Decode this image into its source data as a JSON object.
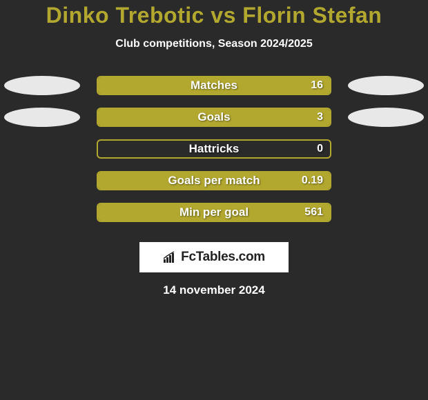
{
  "title": {
    "player1": "Dinko Trebotic",
    "vs": "vs",
    "player2": "Florin Stefan",
    "color": "#b3a82f"
  },
  "subtitle": "Club competitions, Season 2024/2025",
  "colors": {
    "background": "#2a2a2a",
    "bar_fill": "#b3a82f",
    "bar_border": "#b3a82f",
    "bar_bg": "#2a2a2a",
    "ellipse": "#e8e8e8",
    "text": "#ffffff"
  },
  "bar": {
    "track_width": 340,
    "track_height": 28,
    "border_radius": 6,
    "border_width": 2,
    "label_fontsize": 17
  },
  "ellipse": {
    "width": 110,
    "height": 28
  },
  "stats": [
    {
      "label": "Matches",
      "value_text": "16",
      "fill_pct": 100,
      "show_left_ellipse": true,
      "show_right_ellipse": true
    },
    {
      "label": "Goals",
      "value_text": "3",
      "fill_pct": 100,
      "show_left_ellipse": true,
      "show_right_ellipse": true
    },
    {
      "label": "Hattricks",
      "value_text": "0",
      "fill_pct": 0,
      "show_left_ellipse": false,
      "show_right_ellipse": false
    },
    {
      "label": "Goals per match",
      "value_text": "0.19",
      "fill_pct": 100,
      "show_left_ellipse": false,
      "show_right_ellipse": false
    },
    {
      "label": "Min per goal",
      "value_text": "561",
      "fill_pct": 100,
      "show_left_ellipse": false,
      "show_right_ellipse": false
    }
  ],
  "brand": "FcTables.com",
  "date": "14 november 2024"
}
